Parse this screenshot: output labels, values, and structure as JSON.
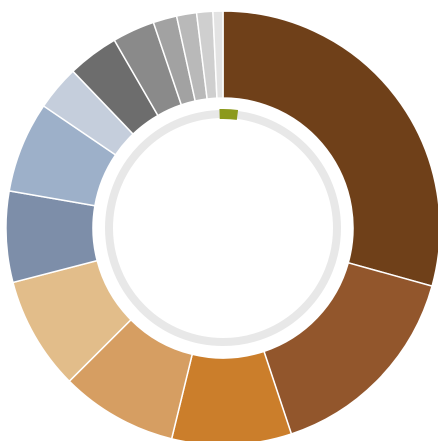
{
  "chart_data": {
    "type": "pie",
    "variant": "donut",
    "title": "",
    "legend": "none",
    "slices": [
      {
        "value": 31.6,
        "color": "#6f4019"
      },
      {
        "value": 16.8,
        "color": "#92562c"
      },
      {
        "value": 9.6,
        "color": "#cb7e2b"
      },
      {
        "value": 9.4,
        "color": "#d69e62"
      },
      {
        "value": 9.1,
        "color": "#e2bd8a"
      },
      {
        "value": 7.3,
        "color": "#7d8ea9"
      },
      {
        "value": 7.3,
        "color": "#9db0c9"
      },
      {
        "value": 3.6,
        "color": "#c5cedc"
      },
      {
        "value": 4.1,
        "color": "#6d6d6d"
      },
      {
        "value": 3.4,
        "color": "#8a8a8a"
      },
      {
        "value": 1.9,
        "color": "#a2a2a2"
      },
      {
        "value": 1.6,
        "color": "#b9b9b9"
      },
      {
        "value": 1.3,
        "color": "#cfcfcf"
      },
      {
        "value": 0.8,
        "color": "#e3e3e3"
      }
    ],
    "inner_ring": {
      "track_color": "#e8e8e8",
      "progress": 0.025,
      "progress_color": "#8c9a1c"
    }
  }
}
